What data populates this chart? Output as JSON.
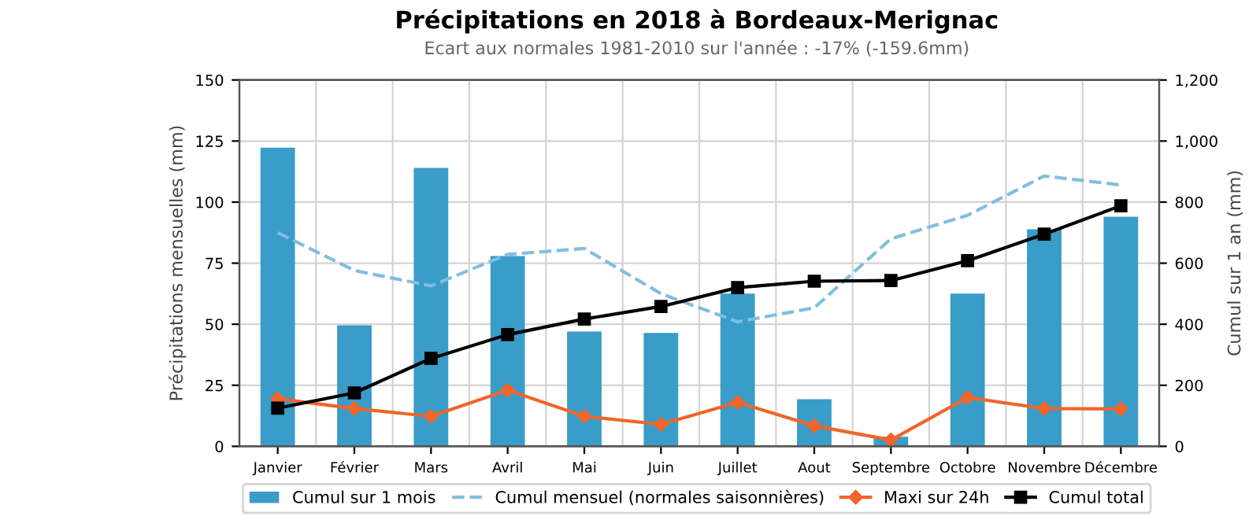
{
  "chart_data": {
    "type": "bar",
    "title": "Précipitations en 2018 à Bordeaux-Merignac",
    "subtitle": "Ecart aux normales 1981-2010 sur l'année : -17% (-159.6mm)",
    "ylabel": "Précipitations mensuelles (mm)",
    "y2label": "Cumul sur 1 an (mm)",
    "categories": [
      "Janvier",
      "Février",
      "Mars",
      "Avril",
      "Mai",
      "Juin",
      "Juillet",
      "Aout",
      "Septembre",
      "Octobre",
      "Novembre",
      "Décembre"
    ],
    "series": [
      {
        "name": "Cumul sur 1 mois",
        "color": "#3a9cc8",
        "values": [
          122.3,
          49.6,
          114,
          77.9,
          47,
          46.4,
          62.5,
          19.3,
          3.9,
          62.5,
          88.9,
          94
        ]
      },
      {
        "name": "Cumul mensuel (normales saisonnières)",
        "type": "line",
        "color": "#7fbfdd",
        "line_style": "dashed",
        "marker": "none",
        "values": [
          87.5,
          72,
          65.7,
          78.6,
          81,
          62.5,
          51,
          56.7,
          85,
          94.6,
          110.7,
          107
        ]
      },
      {
        "name": "Maxi sur 24h",
        "type": "line",
        "color": "#f0652a",
        "line_style": "solid",
        "marker": "diamond",
        "values": [
          19.5,
          15.5,
          12.3,
          23,
          12.3,
          9,
          18,
          8.4,
          2.6,
          20,
          15.5,
          15.3
        ]
      },
      {
        "name": "Cumul total",
        "type": "line",
        "axis": "y2",
        "color": "#000000",
        "line_style": "solid",
        "marker": "square",
        "values": [
          125,
          175,
          288,
          366,
          417,
          458,
          520,
          541,
          543,
          608,
          695,
          788
        ]
      }
    ],
    "ylim": [
      0,
      150
    ],
    "yticks": [
      0,
      25,
      50,
      75,
      100,
      125,
      150
    ],
    "y2lim": [
      0,
      1200
    ],
    "y2ticks": [
      0,
      200,
      400,
      600,
      800,
      {
        "value": 1000,
        "label": "1,000"
      },
      {
        "value": 1200,
        "label": "1,200"
      }
    ],
    "grid": true,
    "legend": "bottom"
  }
}
